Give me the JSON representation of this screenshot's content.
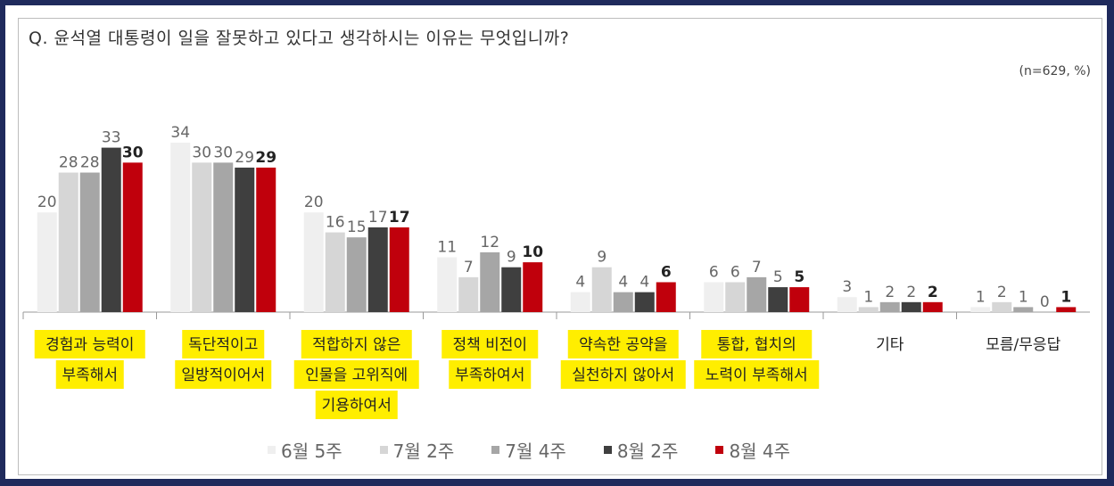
{
  "question": "Q. 윤석열 대통령이 일을 잘못하고 있다고 생각하시는 이유는 무엇입니까?",
  "note": "(n=629,  %)",
  "colors": {
    "series": [
      "#efefef",
      "#d6d6d6",
      "#a6a6a6",
      "#3f3f3f",
      "#c0000c"
    ],
    "highlight": "#ffee00",
    "axis": "#999999"
  },
  "chart_data": {
    "type": "bar",
    "categories": [
      [
        "경험과 능력이",
        "부족해서"
      ],
      [
        "독단적이고",
        "일방적이어서"
      ],
      [
        "적합하지 않은",
        "인물을 고위직에",
        "기용하여서"
      ],
      [
        "정책 비전이",
        "부족하여서"
      ],
      [
        "약속한 공약을",
        "실천하지 않아서"
      ],
      [
        "통합, 협치의",
        "노력이 부족해서"
      ],
      [
        "기타"
      ],
      [
        "모름/무응답"
      ]
    ],
    "highlighted": [
      true,
      true,
      true,
      true,
      true,
      true,
      false,
      false
    ],
    "series": [
      {
        "name": "6월 5주",
        "values": [
          20,
          34,
          20,
          11,
          4,
          6,
          3,
          1
        ]
      },
      {
        "name": "7월 2주",
        "values": [
          28,
          30,
          16,
          7,
          9,
          6,
          1,
          2
        ]
      },
      {
        "name": "7월 4주",
        "values": [
          28,
          30,
          15,
          12,
          4,
          7,
          2,
          1
        ]
      },
      {
        "name": "8월 2주",
        "values": [
          33,
          29,
          17,
          9,
          4,
          5,
          2,
          0
        ]
      },
      {
        "name": "8월 4주",
        "values": [
          30,
          29,
          17,
          10,
          6,
          5,
          2,
          1
        ]
      }
    ],
    "ylim": [
      0,
      34
    ],
    "grid": false,
    "legend_position": "bottom"
  }
}
